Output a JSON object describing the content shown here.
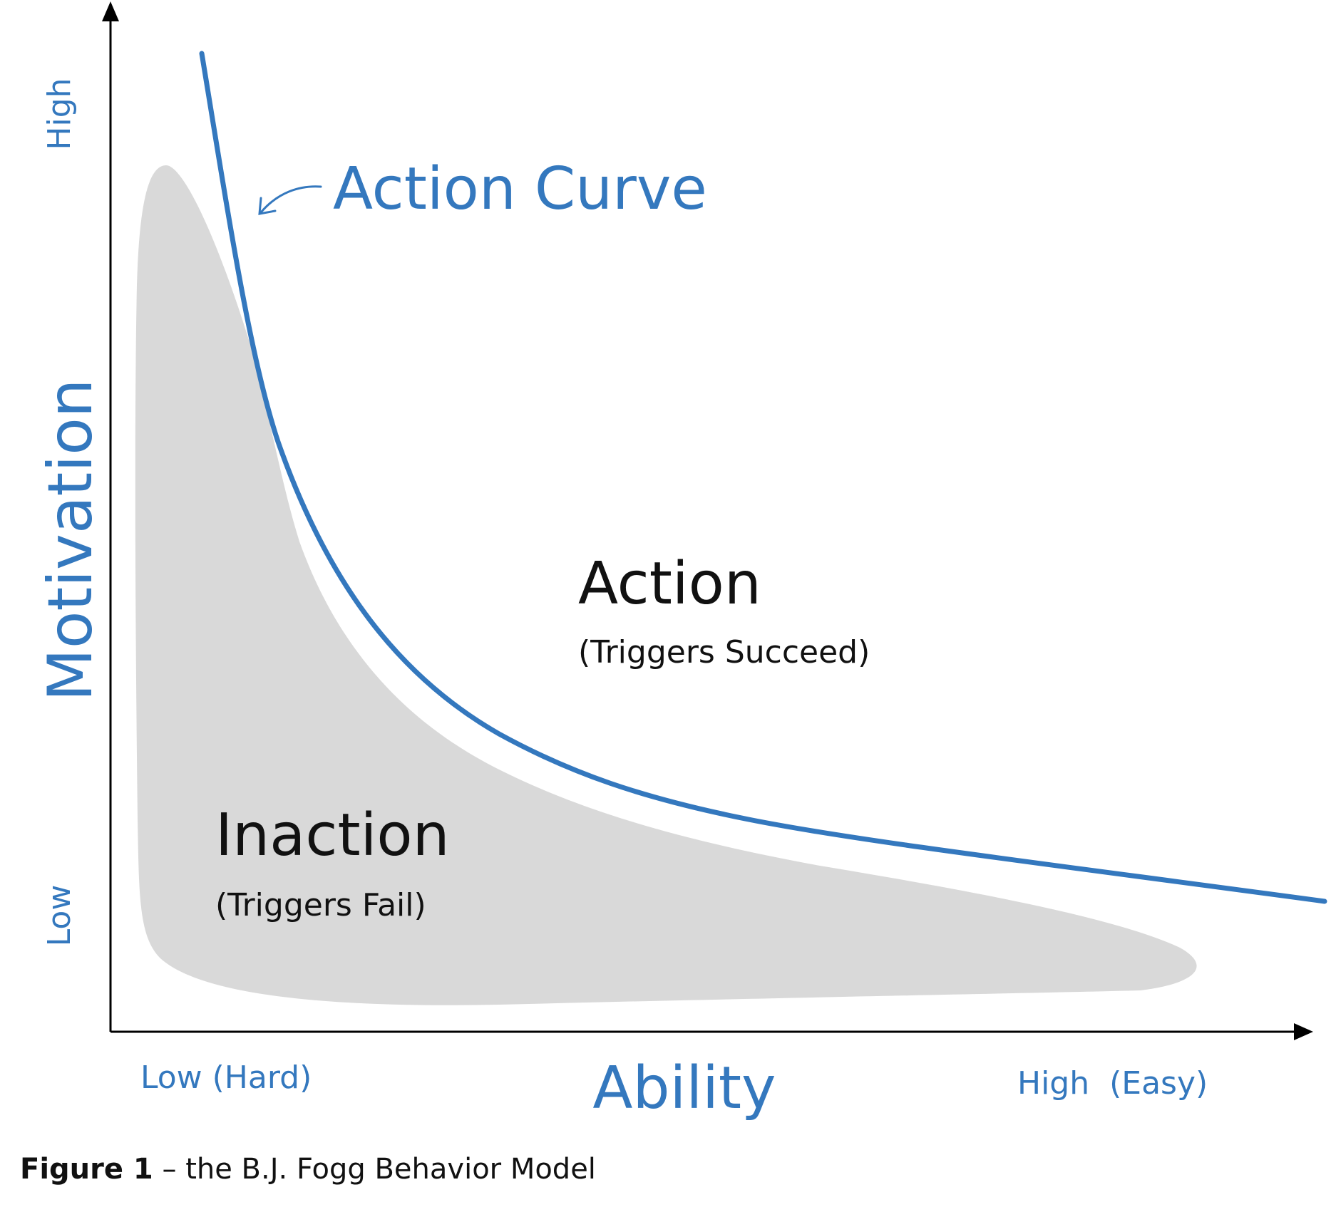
{
  "colors": {
    "accent": "#3478BE",
    "region_fill": "#D9D9D9",
    "axis": "#000000",
    "text": "#111111"
  },
  "y_axis": {
    "title": "Motivation",
    "high_label": "High",
    "low_label": "Low"
  },
  "x_axis": {
    "title": "Ability",
    "low_label": "Low (Hard)",
    "high_label": "High  (Easy)"
  },
  "curve_label": "Action Curve",
  "regions": {
    "action": {
      "title": "Action",
      "subtitle": "(Triggers Succeed)"
    },
    "inaction": {
      "title": "Inaction",
      "subtitle": "(Triggers Fail)"
    }
  },
  "caption": {
    "bold": "Figure 1",
    "rest": " – the B.J. Fogg Behavior Model"
  }
}
